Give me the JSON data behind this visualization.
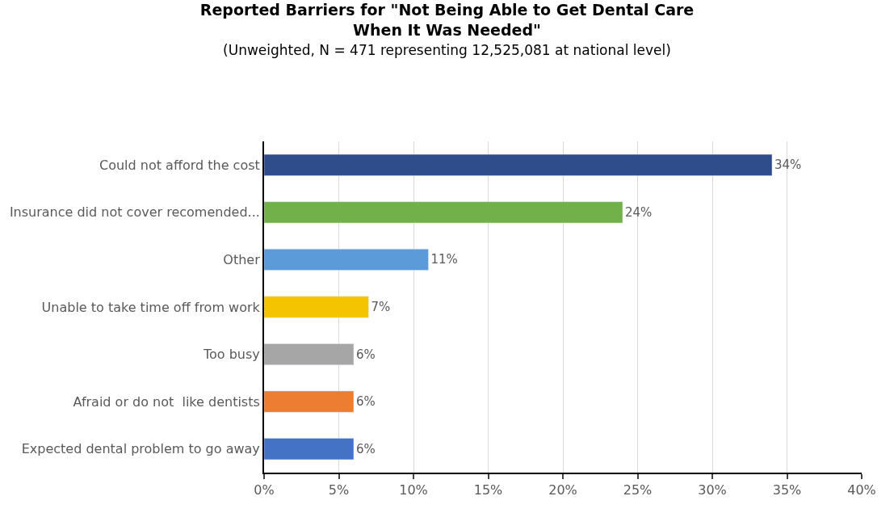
{
  "chart_data": {
    "type": "bar",
    "orientation": "horizontal",
    "title": "Reported Barriers for \"Not Being Able to Get Dental Care When It Was Needed\"",
    "subtitle": "(Unweighted, N = 471 representing 12,525,081 at national level)",
    "categories": [
      "Could not afford the cost",
      "Insurance did not cover recomended...",
      "Other",
      "Unable to take time off from work",
      "Too busy",
      "Afraid or do not  like dentists",
      "Expected dental problem to go away"
    ],
    "values": [
      34,
      24,
      11,
      7,
      6,
      6,
      6
    ],
    "value_labels": [
      "34%",
      "24%",
      "11%",
      "7%",
      "6%",
      "6%",
      "6%"
    ],
    "colors": [
      "#2e4d8a",
      "#72b04a",
      "#5b9bd9",
      "#f5c400",
      "#a6a6a6",
      "#ed7d31",
      "#4472c4"
    ],
    "xlim": [
      0,
      40
    ],
    "xticks": [
      {
        "value": 0,
        "label": "0%"
      },
      {
        "value": 5,
        "label": "5%"
      },
      {
        "value": 10,
        "label": "10%"
      },
      {
        "value": 15,
        "label": "15%"
      },
      {
        "value": 20,
        "label": "20%"
      },
      {
        "value": 25,
        "label": "25%"
      },
      {
        "value": 30,
        "label": "30%"
      },
      {
        "value": 35,
        "label": "35%"
      },
      {
        "value": 40,
        "label": "40%"
      }
    ],
    "grid": "x"
  }
}
